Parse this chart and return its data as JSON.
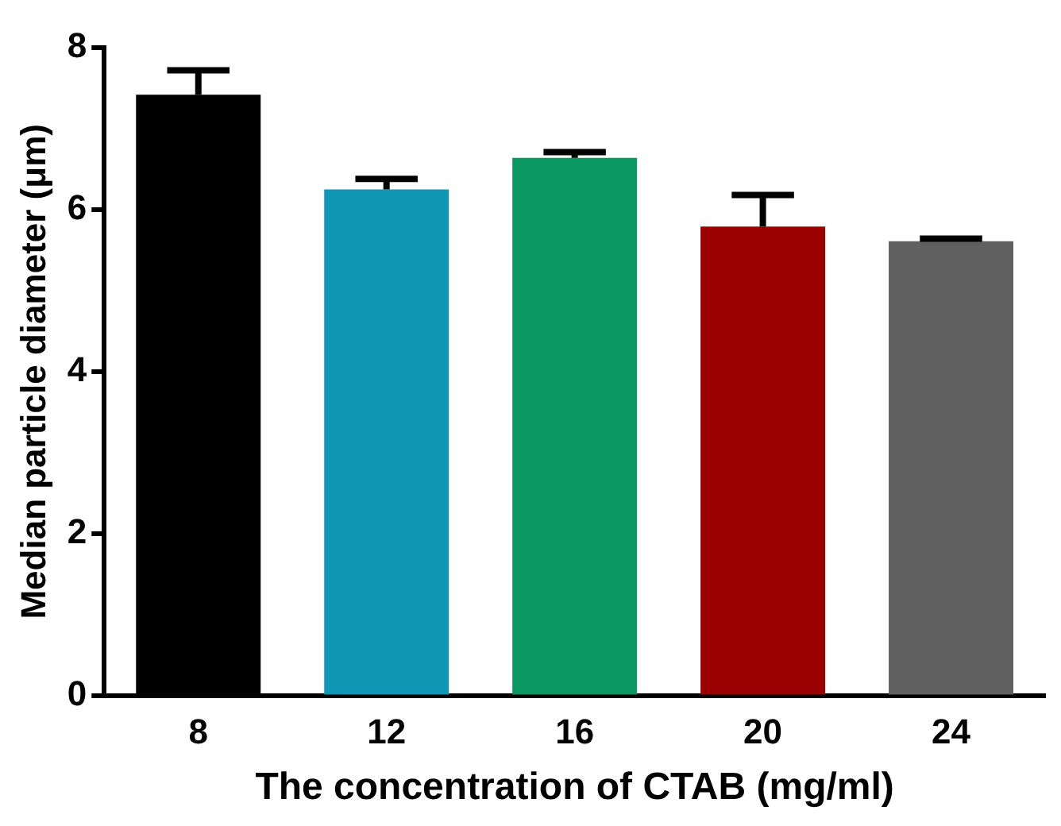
{
  "chart_data": {
    "type": "bar",
    "xlabel": "The concentration of CTAB (mg/ml)",
    "ylabel": "Median particle diameter (μm)",
    "categories": [
      "8",
      "12",
      "16",
      "20",
      "24"
    ],
    "values": [
      7.42,
      6.25,
      6.64,
      5.79,
      5.61
    ],
    "errors": [
      0.3,
      0.13,
      0.07,
      0.39,
      0.03
    ],
    "colors": [
      "#000000",
      "#1097b3",
      "#0a9762",
      "#9b0000",
      "#606060"
    ],
    "ylim": [
      0,
      8
    ],
    "yticks": [
      0,
      2,
      4,
      6,
      8
    ],
    "grid": false,
    "legend": false
  }
}
